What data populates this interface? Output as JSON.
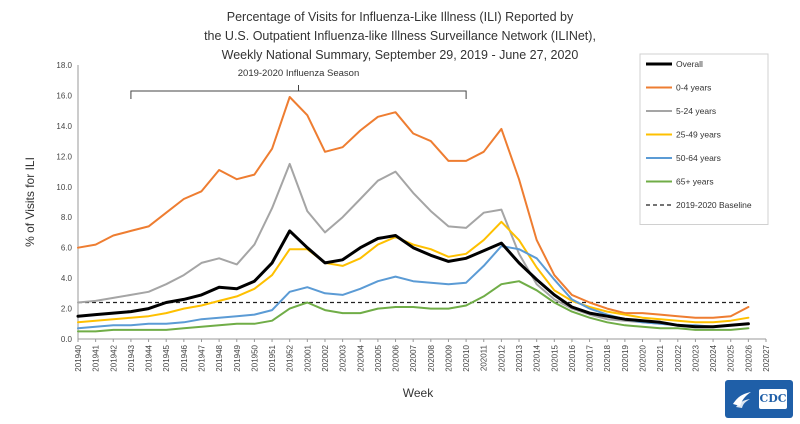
{
  "title": {
    "line1": "Percentage of Visits for Influenza-Like Illness (ILI) Reported by",
    "line2": "the U.S. Outpatient Influenza-like Illness Surveillance Network (ILINet),",
    "line3": "Weekly National Summary, September 29, 2019 - June 27, 2020"
  },
  "logo": {
    "text": "CDC"
  },
  "chart_data": {
    "type": "line",
    "xlabel": "Week",
    "ylabel": "% of Visits for ILI",
    "ylim": [
      0,
      18
    ],
    "yticks": [
      "0.0",
      "2.0",
      "4.0",
      "6.0",
      "8.0",
      "10.0",
      "12.0",
      "14.0",
      "16.0",
      "18.0"
    ],
    "yticks_values": [
      0,
      2,
      4,
      6,
      8,
      10,
      12,
      14,
      16,
      18
    ],
    "grid": false,
    "legend_position": "right",
    "annotation": {
      "label": "2019-2020 Influenza Season",
      "from": "201943",
      "to": "202010"
    },
    "categories": [
      "201940",
      "201941",
      "201942",
      "201943",
      "201944",
      "201945",
      "201946",
      "201947",
      "201948",
      "201949",
      "201950",
      "201951",
      "201952",
      "202001",
      "202002",
      "202003",
      "202004",
      "202005",
      "202006",
      "202007",
      "202008",
      "202009",
      "202010",
      "202011",
      "202012",
      "202013",
      "202014",
      "202015",
      "202016",
      "202017",
      "202018",
      "202019",
      "202020",
      "202021",
      "202022",
      "202023",
      "202024",
      "202025",
      "202026",
      "202027"
    ],
    "baseline": {
      "name": "2019-2020 Baseline",
      "value": 2.4,
      "color": "#222222"
    },
    "series": [
      {
        "name": "Overall",
        "color": "#000000",
        "width": 3,
        "values": [
          1.5,
          1.6,
          1.7,
          1.8,
          2.0,
          2.4,
          2.6,
          2.9,
          3.4,
          3.3,
          3.8,
          5.0,
          7.1,
          6.0,
          5.0,
          5.2,
          6.0,
          6.6,
          6.8,
          6.0,
          5.5,
          5.1,
          5.3,
          5.8,
          6.3,
          5.0,
          3.9,
          2.9,
          2.1,
          1.7,
          1.5,
          1.3,
          1.2,
          1.1,
          0.9,
          0.8,
          0.8,
          0.9,
          1.0,
          null
        ]
      },
      {
        "name": "0-4 years",
        "color": "#ee7d31",
        "width": 2,
        "values": [
          6.0,
          6.2,
          6.8,
          7.1,
          7.4,
          8.3,
          9.2,
          9.7,
          11.1,
          10.5,
          10.8,
          12.5,
          15.9,
          14.7,
          12.3,
          12.6,
          13.7,
          14.6,
          14.9,
          13.5,
          13.0,
          11.7,
          11.7,
          12.3,
          13.8,
          10.5,
          6.5,
          4.2,
          2.9,
          2.4,
          2.0,
          1.7,
          1.7,
          1.6,
          1.5,
          1.4,
          1.4,
          1.5,
          2.1,
          null
        ]
      },
      {
        "name": "5-24 years",
        "color": "#a5a5a5",
        "width": 2,
        "values": [
          2.4,
          2.5,
          2.7,
          2.9,
          3.1,
          3.6,
          4.2,
          5.0,
          5.3,
          4.9,
          6.2,
          8.6,
          11.5,
          8.4,
          7.0,
          8.0,
          9.2,
          10.4,
          11.0,
          9.6,
          8.4,
          7.4,
          7.3,
          8.3,
          8.5,
          5.6,
          3.6,
          2.6,
          2.0,
          1.6,
          1.3,
          1.2,
          1.1,
          1.0,
          0.9,
          0.8,
          0.8,
          0.9,
          1.0,
          null
        ]
      },
      {
        "name": "25-49 years",
        "color": "#fec000",
        "width": 2,
        "values": [
          1.1,
          1.2,
          1.3,
          1.4,
          1.5,
          1.7,
          2.0,
          2.2,
          2.5,
          2.8,
          3.3,
          4.2,
          5.9,
          5.9,
          5.0,
          4.8,
          5.3,
          6.2,
          6.7,
          6.2,
          5.9,
          5.4,
          5.6,
          6.5,
          7.7,
          6.5,
          4.7,
          3.2,
          2.5,
          2.1,
          1.8,
          1.6,
          1.4,
          1.3,
          1.2,
          1.1,
          1.1,
          1.2,
          1.4,
          null
        ]
      },
      {
        "name": "50-64 years",
        "color": "#5b9bd5",
        "width": 2,
        "values": [
          0.7,
          0.8,
          0.9,
          0.9,
          1.0,
          1.0,
          1.1,
          1.3,
          1.4,
          1.5,
          1.6,
          1.9,
          3.1,
          3.4,
          3.0,
          2.9,
          3.3,
          3.8,
          4.1,
          3.8,
          3.7,
          3.6,
          3.7,
          4.8,
          6.1,
          5.9,
          5.3,
          3.9,
          2.6,
          2.0,
          1.6,
          1.3,
          1.1,
          1.0,
          0.9,
          0.9,
          0.8,
          0.9,
          1.0,
          null
        ]
      },
      {
        "name": "65+ years",
        "color": "#70ad47",
        "width": 2,
        "values": [
          0.5,
          0.5,
          0.6,
          0.6,
          0.6,
          0.6,
          0.7,
          0.8,
          0.9,
          1.0,
          1.0,
          1.2,
          2.0,
          2.4,
          1.9,
          1.7,
          1.7,
          2.0,
          2.1,
          2.1,
          2.0,
          2.0,
          2.2,
          2.8,
          3.6,
          3.8,
          3.2,
          2.4,
          1.8,
          1.4,
          1.1,
          0.9,
          0.8,
          0.7,
          0.7,
          0.6,
          0.6,
          0.6,
          0.7,
          null
        ]
      }
    ]
  }
}
